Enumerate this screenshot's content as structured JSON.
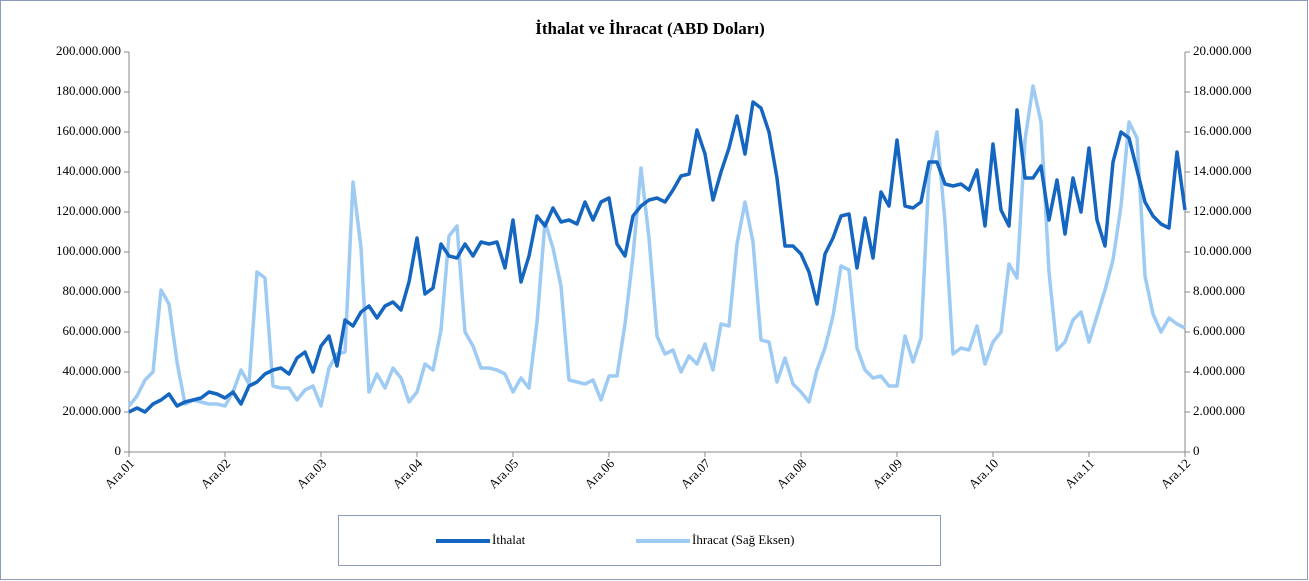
{
  "chart_data": {
    "type": "line",
    "title": "İthalat ve İhracat (ABD Doları)",
    "categories": [
      "Ara.01",
      null,
      null,
      null,
      null,
      null,
      null,
      null,
      null,
      null,
      null,
      null,
      "Ara.02",
      null,
      null,
      null,
      null,
      null,
      null,
      null,
      null,
      null,
      null,
      null,
      "Ara.03",
      null,
      null,
      null,
      null,
      null,
      null,
      null,
      null,
      null,
      null,
      null,
      "Ara.04",
      null,
      null,
      null,
      null,
      null,
      null,
      null,
      null,
      null,
      null,
      null,
      "Ara.05",
      null,
      null,
      null,
      null,
      null,
      null,
      null,
      null,
      null,
      null,
      null,
      "Ara.06",
      null,
      null,
      null,
      null,
      null,
      null,
      null,
      null,
      null,
      null,
      null,
      "Ara.07",
      null,
      null,
      null,
      null,
      null,
      null,
      null,
      null,
      null,
      null,
      null,
      "Ara.08",
      null,
      null,
      null,
      null,
      null,
      null,
      null,
      null,
      null,
      null,
      null,
      "Ara.09",
      null,
      null,
      null,
      null,
      null,
      null,
      null,
      null,
      null,
      null,
      null,
      "Ara.10",
      null,
      null,
      null,
      null,
      null,
      null,
      null,
      null,
      null,
      null,
      null,
      "Ara.11",
      null,
      null,
      null,
      null,
      null,
      null,
      null,
      null,
      null,
      null,
      null,
      "Ara.12"
    ],
    "series": [
      {
        "name": "İthalat",
        "color": "#1566c0",
        "axis": "y",
        "values": [
          20000000,
          22000000,
          20000000,
          24000000,
          26000000,
          29000000,
          23000000,
          25000000,
          26000000,
          27000000,
          30000000,
          29000000,
          27000000,
          30000000,
          24000000,
          33000000,
          35000000,
          39000000,
          41000000,
          42000000,
          39000000,
          47000000,
          50000000,
          40000000,
          53000000,
          58000000,
          43000000,
          66000000,
          63000000,
          70000000,
          73000000,
          67000000,
          73000000,
          75000000,
          71000000,
          85000000,
          107000000,
          79000000,
          82000000,
          104000000,
          98000000,
          97000000,
          104000000,
          98000000,
          105000000,
          104000000,
          105000000,
          92000000,
          116000000,
          85000000,
          98000000,
          118000000,
          113000000,
          122000000,
          115000000,
          116000000,
          114000000,
          125000000,
          116000000,
          125000000,
          127000000,
          104000000,
          98000000,
          118000000,
          123000000,
          126000000,
          127000000,
          125000000,
          131000000,
          138000000,
          139000000,
          161000000,
          149000000,
          126000000,
          140000000,
          152000000,
          168000000,
          149000000,
          175000000,
          172000000,
          160000000,
          137000000,
          103000000,
          103000000,
          99000000,
          90000000,
          74000000,
          99000000,
          107000000,
          118000000,
          119000000,
          92000000,
          117000000,
          97000000,
          130000000,
          123000000,
          156000000,
          123000000,
          122000000,
          125000000,
          145000000,
          145000000,
          134000000,
          133000000,
          134000000,
          131000000,
          141000000,
          113000000,
          154000000,
          121000000,
          113000000,
          171000000,
          137000000,
          137000000,
          143000000,
          116000000,
          136000000,
          109000000,
          137000000,
          120000000,
          152000000,
          116000000,
          103000000,
          145000000,
          160000000,
          157000000,
          141000000,
          125000000,
          118000000,
          114000000,
          112000000,
          150000000,
          121000000
        ]
      },
      {
        "name": "İhracat (Sağ Eksen)",
        "color": "#9ecbf4",
        "axis": "y2",
        "values": [
          2300000,
          2800000,
          3600000,
          4000000,
          8100000,
          7400000,
          4500000,
          2400000,
          2600000,
          2500000,
          2400000,
          2400000,
          2300000,
          3000000,
          4100000,
          3400000,
          9000000,
          8700000,
          3300000,
          3200000,
          3200000,
          2600000,
          3100000,
          3300000,
          2300000,
          4200000,
          4900000,
          5000000,
          13500000,
          10200000,
          3000000,
          3900000,
          3200000,
          4200000,
          3700000,
          2500000,
          3000000,
          4400000,
          4100000,
          6100000,
          10800000,
          11300000,
          6000000,
          5300000,
          4200000,
          4200000,
          4100000,
          3900000,
          3000000,
          3700000,
          3200000,
          6500000,
          11500000,
          10200000,
          8300000,
          3600000,
          3500000,
          3400000,
          3600000,
          2600000,
          3800000,
          3800000,
          6400000,
          9800000,
          14200000,
          10700000,
          5800000,
          4900000,
          5100000,
          4000000,
          4800000,
          4400000,
          5400000,
          4100000,
          6400000,
          6300000,
          10400000,
          12500000,
          10500000,
          5600000,
          5500000,
          3500000,
          4700000,
          3400000,
          3000000,
          2500000,
          4100000,
          5200000,
          6800000,
          9300000,
          9100000,
          5200000,
          4100000,
          3700000,
          3800000,
          3300000,
          3300000,
          5800000,
          4500000,
          5700000,
          13900000,
          16000000,
          11500000,
          4900000,
          5200000,
          5100000,
          6300000,
          4400000,
          5500000,
          6000000,
          9400000,
          8700000,
          15600000,
          18300000,
          16500000,
          9000000,
          5100000,
          5500000,
          6600000,
          7000000,
          5500000,
          6800000,
          8100000,
          9600000,
          12300000,
          16500000,
          15700000,
          8800000,
          6900000,
          6000000,
          6700000,
          6400000,
          6200000
        ]
      }
    ],
    "ylim": [
      0,
      200000000
    ],
    "yticks": [
      0,
      {
        "value": 20000000,
        "label": "20.000.000"
      },
      {
        "value": 40000000,
        "label": "40.000.000"
      },
      {
        "value": 60000000,
        "label": "60.000.000"
      },
      {
        "value": 80000000,
        "label": "80.000.000"
      },
      {
        "value": 100000000,
        "label": "100.000.000"
      },
      {
        "value": 120000000,
        "label": "120.000.000"
      },
      {
        "value": 140000000,
        "label": "140.000.000"
      },
      {
        "value": 160000000,
        "label": "160.000.000"
      },
      {
        "value": 180000000,
        "label": "180.000.000"
      },
      {
        "value": 200000000,
        "label": "200.000.000"
      }
    ],
    "y2lim": [
      0,
      20000000
    ],
    "y2ticks": [
      0,
      {
        "value": 2000000,
        "label": "2.000.000"
      },
      {
        "value": 4000000,
        "label": "4.000.000"
      },
      {
        "value": 6000000,
        "label": "6.000.000"
      },
      {
        "value": 8000000,
        "label": "8.000.000"
      },
      {
        "value": 10000000,
        "label": "10.000.000"
      },
      {
        "value": 12000000,
        "label": "12.000.000"
      },
      {
        "value": 14000000,
        "label": "14.000.000"
      },
      {
        "value": 16000000,
        "label": "16.000.000"
      },
      {
        "value": 18000000,
        "label": "18.000.000"
      },
      {
        "value": 20000000,
        "label": "20.000.000"
      }
    ],
    "grid": false,
    "legend": "bottom"
  }
}
